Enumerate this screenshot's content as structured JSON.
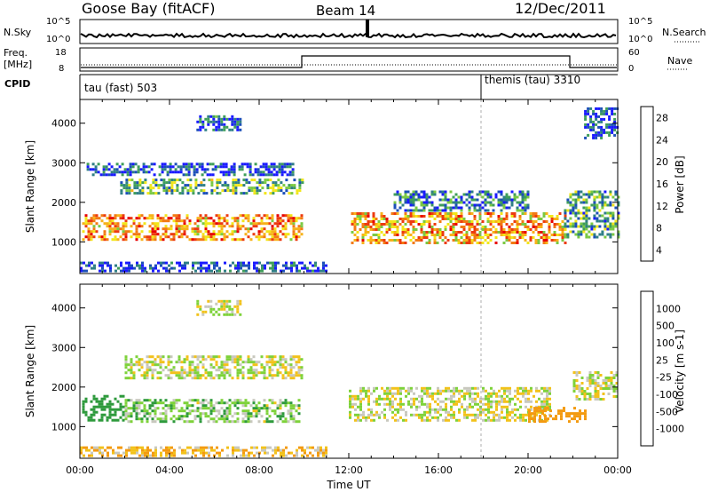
{
  "header": {
    "station": "Goose Bay (fitACF)",
    "beam": "Beam 14",
    "date": "12/Dec/2011"
  },
  "top_panels": {
    "nsky_label": "N.Sky",
    "nsky_ticks": [
      "10^5",
      "10^0"
    ],
    "nsearch_label": "N.Search",
    "nsearch_ticks": [
      "10^5",
      "10^0"
    ],
    "freq_label": "Freq.",
    "freq_unit": "[MHz]",
    "freq_ticks": [
      "18",
      "8"
    ],
    "nave_label": "Nave",
    "nave_ticks": [
      "60",
      "0"
    ],
    "cpid_label": "CPID",
    "cpid_segments": [
      {
        "name": "tau (fast) 503",
        "start_hour": 0,
        "end_hour": 18
      },
      {
        "name": "themis (tau) 3310",
        "start_hour": 18,
        "end_hour": 24
      }
    ]
  },
  "chart_data": [
    {
      "type": "heatmap",
      "name": "power",
      "xlabel": "",
      "ylabel": "Slant Range [km]",
      "xlim": [
        0,
        24
      ],
      "ylim": [
        200,
        4600
      ],
      "yticks": [
        "1000",
        "2000",
        "3000",
        "4000"
      ],
      "colorbar": {
        "label": "Power [dB]",
        "ticks": [
          "4",
          "8",
          "12",
          "16",
          "20",
          "24",
          "28"
        ],
        "colors": [
          "#1a1aff",
          "#1c4fb8",
          "#2f7f86",
          "#3f9e5a",
          "#7ac943",
          "#f2e61a",
          "#f7b21a",
          "#f27a14",
          "#ec3b10",
          "#e80000"
        ]
      },
      "echo_regions": [
        {
          "start_hour": 0.1,
          "end_hour": 9.9,
          "range_lo": 1050,
          "range_hi": 1700,
          "power_db": 22
        },
        {
          "start_hour": 1.8,
          "end_hour": 9.9,
          "range_lo": 2200,
          "range_hi": 2600,
          "power_db": 12
        },
        {
          "start_hour": 0.3,
          "end_hour": 9.5,
          "range_lo": 2700,
          "range_hi": 3000,
          "power_db": 6
        },
        {
          "start_hour": 5.2,
          "end_hour": 7.2,
          "range_lo": 3800,
          "range_hi": 4200,
          "power_db": 7
        },
        {
          "start_hour": 12.1,
          "end_hour": 21.7,
          "range_lo": 1000,
          "range_hi": 1750,
          "power_db": 21
        },
        {
          "start_hour": 14.0,
          "end_hour": 20.0,
          "range_lo": 1800,
          "range_hi": 2300,
          "power_db": 9
        },
        {
          "start_hour": 21.6,
          "end_hour": 24.0,
          "range_lo": 1100,
          "range_hi": 2300,
          "power_db": 11
        },
        {
          "start_hour": 22.5,
          "end_hour": 24.0,
          "range_lo": 3600,
          "range_hi": 4400,
          "power_db": 6
        },
        {
          "start_hour": 0.0,
          "end_hour": 11.0,
          "range_lo": 250,
          "range_hi": 500,
          "power_db": 6
        }
      ]
    },
    {
      "type": "heatmap",
      "name": "velocity",
      "xlabel": "Time UT",
      "ylabel": "Slant Range [km]",
      "xlim": [
        0,
        24
      ],
      "ylim": [
        200,
        4600
      ],
      "xticks": [
        "00:00",
        "04:00",
        "08:00",
        "12:00",
        "16:00",
        "20:00",
        "00:00"
      ],
      "yticks": [
        "1000",
        "2000",
        "3000",
        "4000"
      ],
      "colorbar": {
        "label": "Velocity [m s-1]",
        "ticks": [
          "1000",
          "500",
          "100",
          "25",
          "-25",
          "-100",
          "-500",
          "-1000"
        ],
        "colors": [
          "#1f3fb0",
          "#1a6e8a",
          "#2e9a3c",
          "#7ed23a",
          "#c8c8be",
          "#f2c21a",
          "#f39a10",
          "#ef6010",
          "#e80000"
        ]
      },
      "echo_regions": [
        {
          "start_hour": 0.1,
          "end_hour": 2.0,
          "range_lo": 1150,
          "range_hi": 1800,
          "velocity": 300
        },
        {
          "start_hour": 2.0,
          "end_hour": 9.8,
          "range_lo": 1100,
          "range_hi": 1700,
          "velocity": 60
        },
        {
          "start_hour": 2.0,
          "end_hour": 9.9,
          "range_lo": 2200,
          "range_hi": 2800,
          "velocity": 0
        },
        {
          "start_hour": 5.2,
          "end_hour": 7.2,
          "range_lo": 3800,
          "range_hi": 4200,
          "velocity": 0
        },
        {
          "start_hour": 12.0,
          "end_hour": 21.0,
          "range_lo": 1150,
          "range_hi": 2000,
          "velocity": 0
        },
        {
          "start_hour": 20.0,
          "end_hour": 22.5,
          "range_lo": 1100,
          "range_hi": 1500,
          "velocity": -200
        },
        {
          "start_hour": 22.0,
          "end_hour": 24.0,
          "range_lo": 1700,
          "range_hi": 2400,
          "velocity": 0
        },
        {
          "start_hour": 0.0,
          "end_hour": 11.0,
          "range_lo": 250,
          "range_hi": 500,
          "velocity": -80
        }
      ]
    }
  ]
}
